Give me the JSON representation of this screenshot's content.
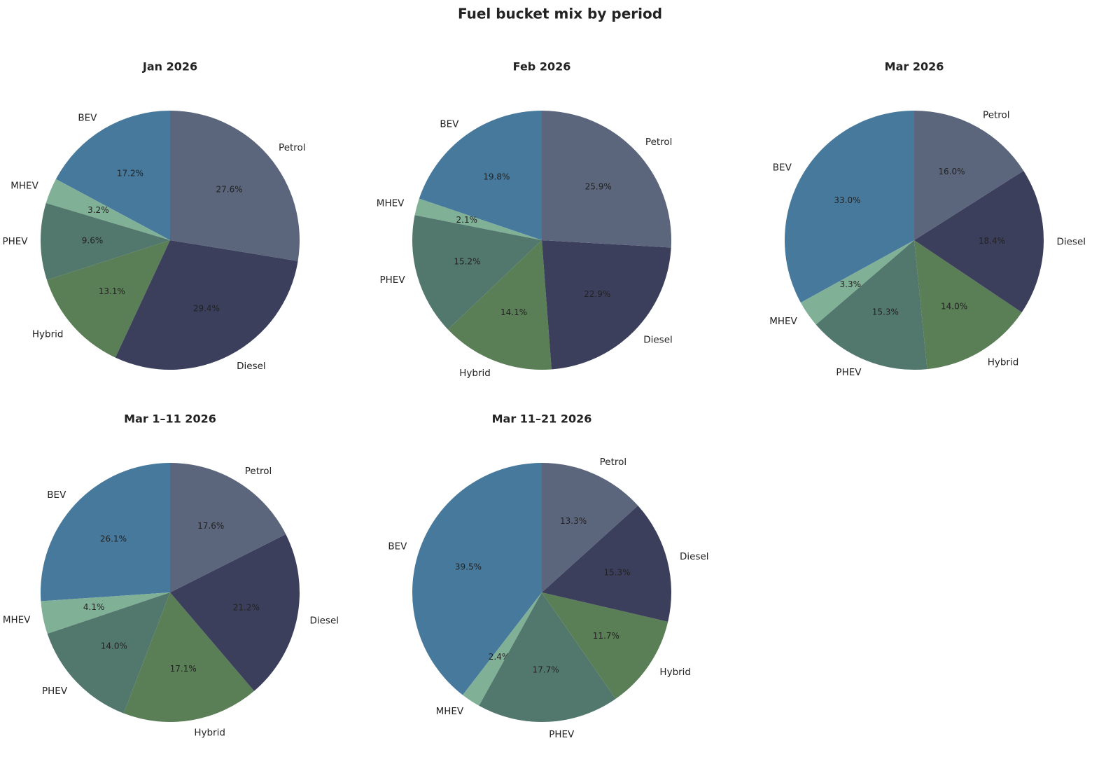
{
  "title": "Fuel bucket mix by period",
  "chart_data": [
    {
      "type": "pie",
      "title": "Jan 2026",
      "categories": [
        "BEV",
        "MHEV",
        "PHEV",
        "Hybrid",
        "Diesel",
        "Petrol"
      ],
      "values": [
        17.2,
        3.2,
        9.6,
        13.1,
        29.4,
        27.6
      ],
      "value_labels": [
        "17.2%",
        "3.2%",
        "9.6%",
        "13.1%",
        "29.4%",
        "27.6%"
      ],
      "colors": [
        "#46799c",
        "#80b096",
        "#52786d",
        "#5a7e55",
        "#3c3f5c",
        "#5b657b"
      ]
    },
    {
      "type": "pie",
      "title": "Feb 2026",
      "categories": [
        "BEV",
        "MHEV",
        "PHEV",
        "Hybrid",
        "Diesel",
        "Petrol"
      ],
      "values": [
        19.8,
        2.1,
        15.2,
        14.1,
        22.9,
        25.9
      ],
      "value_labels": [
        "19.8%",
        "2.1%",
        "15.2%",
        "14.1%",
        "22.9%",
        "25.9%"
      ],
      "colors": [
        "#46799c",
        "#80b096",
        "#52786d",
        "#5a7e55",
        "#3c3f5c",
        "#5b657b"
      ]
    },
    {
      "type": "pie",
      "title": "Mar 2026",
      "categories": [
        "BEV",
        "MHEV",
        "PHEV",
        "Hybrid",
        "Diesel",
        "Petrol"
      ],
      "values": [
        33.0,
        3.3,
        15.3,
        14.0,
        18.4,
        16.0
      ],
      "value_labels": [
        "33.0%",
        "3.3%",
        "15.3%",
        "14.0%",
        "18.4%",
        "16.0%"
      ],
      "colors": [
        "#46799c",
        "#80b096",
        "#52786d",
        "#5a7e55",
        "#3c3f5c",
        "#5b657b"
      ]
    },
    {
      "type": "pie",
      "title": "Mar 1–11 2026",
      "categories": [
        "BEV",
        "MHEV",
        "PHEV",
        "Hybrid",
        "Diesel",
        "Petrol"
      ],
      "values": [
        26.1,
        4.1,
        14.0,
        17.1,
        21.2,
        17.6
      ],
      "value_labels": [
        "26.1%",
        "4.1%",
        "14.0%",
        "17.1%",
        "21.2%",
        "17.6%"
      ],
      "colors": [
        "#46799c",
        "#80b096",
        "#52786d",
        "#5a7e55",
        "#3c3f5c",
        "#5b657b"
      ]
    },
    {
      "type": "pie",
      "title": "Mar 11–21 2026",
      "categories": [
        "BEV",
        "MHEV",
        "PHEV",
        "Hybrid",
        "Diesel",
        "Petrol"
      ],
      "values": [
        39.5,
        2.4,
        17.7,
        11.7,
        15.3,
        13.3
      ],
      "value_labels": [
        "39.5%",
        "2.4%",
        "17.7%",
        "11.7%",
        "15.3%",
        "13.3%"
      ],
      "colors": [
        "#46799c",
        "#80b096",
        "#52786d",
        "#5a7e55",
        "#3c3f5c",
        "#5b657b"
      ]
    }
  ]
}
